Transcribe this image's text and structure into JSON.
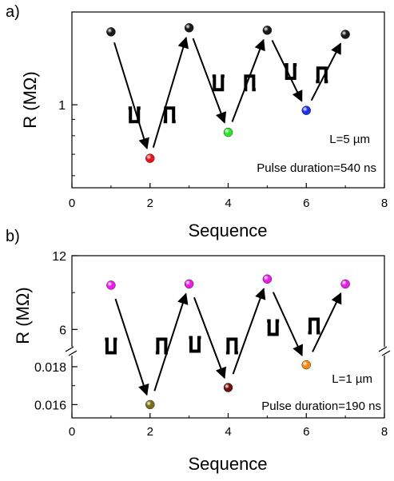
{
  "chart_data": [
    {
      "panel_label": "a)",
      "type": "scatter",
      "x": [
        1,
        2,
        3,
        4,
        5,
        6,
        7
      ],
      "y": [
        1.69,
        0.68,
        1.74,
        0.82,
        1.71,
        0.96,
        1.66
      ],
      "point_colors": [
        "#1a1a1a",
        "#e8141c",
        "#1a1a1a",
        "#2ee62e",
        "#1a1a1a",
        "#2030e8",
        "#1a1a1a"
      ],
      "xlabel": "Sequence",
      "ylabel": "R (MΩ)",
      "xlim": [
        0,
        8
      ],
      "ylim_log": [
        0.55,
        1.95
      ],
      "yscale": "log",
      "x_ticks": [
        "0",
        "2",
        "4",
        "6",
        "8"
      ],
      "y_ticks": [
        "1"
      ],
      "annotations": [
        "L=5 µm",
        "Pulse duration=540 ns"
      ],
      "pulse_symbols": [
        "negative-pulse",
        "positive-pulse",
        "negative-pulse",
        "positive-pulse",
        "negative-pulse",
        "positive-pulse"
      ],
      "grid": false,
      "legend": "none"
    },
    {
      "panel_label": "b)",
      "type": "scatter",
      "x": [
        1,
        2,
        3,
        4,
        5,
        6,
        7
      ],
      "y": [
        9.6,
        0.016,
        9.7,
        0.0169,
        10.1,
        0.0181,
        9.7
      ],
      "point_colors": [
        "#e81ee8",
        "#7a6e14",
        "#e81ee8",
        "#6e1010",
        "#e81ee8",
        "#f08c14",
        "#e81ee8"
      ],
      "xlabel": "Sequence",
      "ylabel": "R (MΩ)",
      "xlim": [
        0,
        8
      ],
      "y_axis_break": true,
      "ylim_upper": [
        4.2,
        12
      ],
      "ylim_lower": [
        0.0153,
        0.0188
      ],
      "x_ticks": [
        "0",
        "2",
        "4",
        "6",
        "8"
      ],
      "y_ticks_upper": [
        "12",
        "6"
      ],
      "y_ticks_lower": [
        "0.018",
        "0.016"
      ],
      "annotations": [
        "L=1 µm",
        "Pulse duration=190 ns"
      ],
      "pulse_symbols": [
        "negative-pulse",
        "positive-pulse",
        "negative-pulse",
        "positive-pulse",
        "negative-pulse",
        "positive-pulse"
      ],
      "grid": false,
      "legend": "none"
    }
  ]
}
